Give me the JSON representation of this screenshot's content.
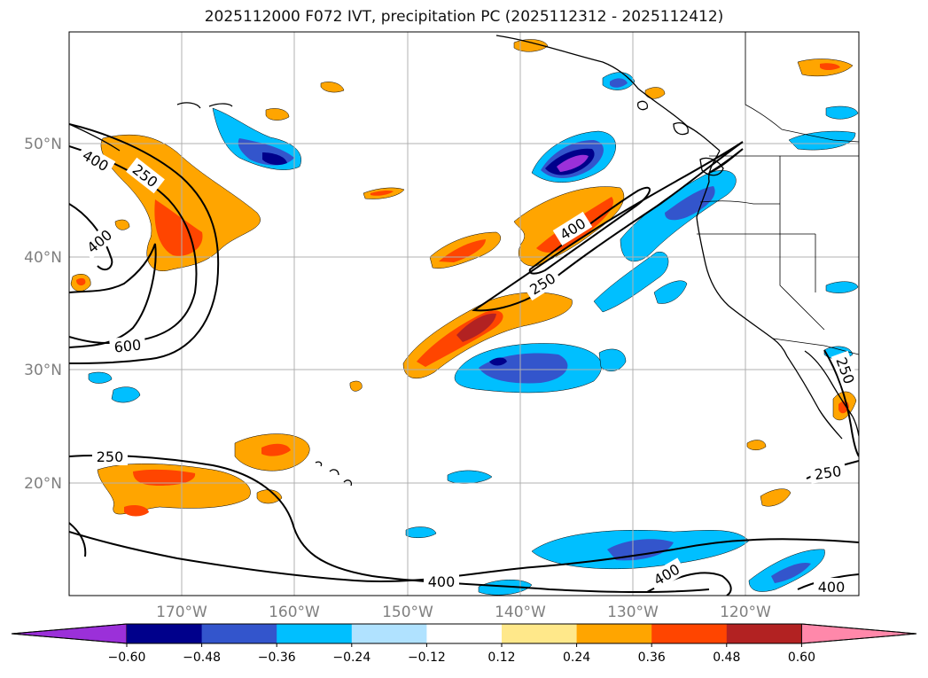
{
  "title": "2025112000 F072 IVT, precipitation PC (2025112312 - 2025112412)",
  "lat_labels": [
    "50°N",
    "40°N",
    "30°N",
    "20°N"
  ],
  "lon_labels": [
    "170°W",
    "160°W",
    "150°W",
    "140°W",
    "130°W",
    "120°W"
  ],
  "ivt_contour_labels": [
    "400",
    "250",
    "400",
    "600",
    "400",
    "250",
    "250",
    "250",
    "400",
    "400",
    "250",
    "400"
  ],
  "colorbar": {
    "ticks": [
      "−0.60",
      "−0.48",
      "−0.36",
      "−0.24",
      "−0.12",
      "0.12",
      "0.24",
      "0.36",
      "0.48",
      "0.60"
    ],
    "colors": [
      "#9b30d9",
      "#00008b",
      "#3355cc",
      "#00bfff",
      "#b0e2ff",
      "#ffffff",
      "#ffe88a",
      "#ffa500",
      "#ff4500",
      "#b22222",
      "#ff88aa"
    ]
  },
  "colors": {
    "coast": "#000000",
    "grid": "#b0b0b0",
    "contour": "#000000"
  }
}
